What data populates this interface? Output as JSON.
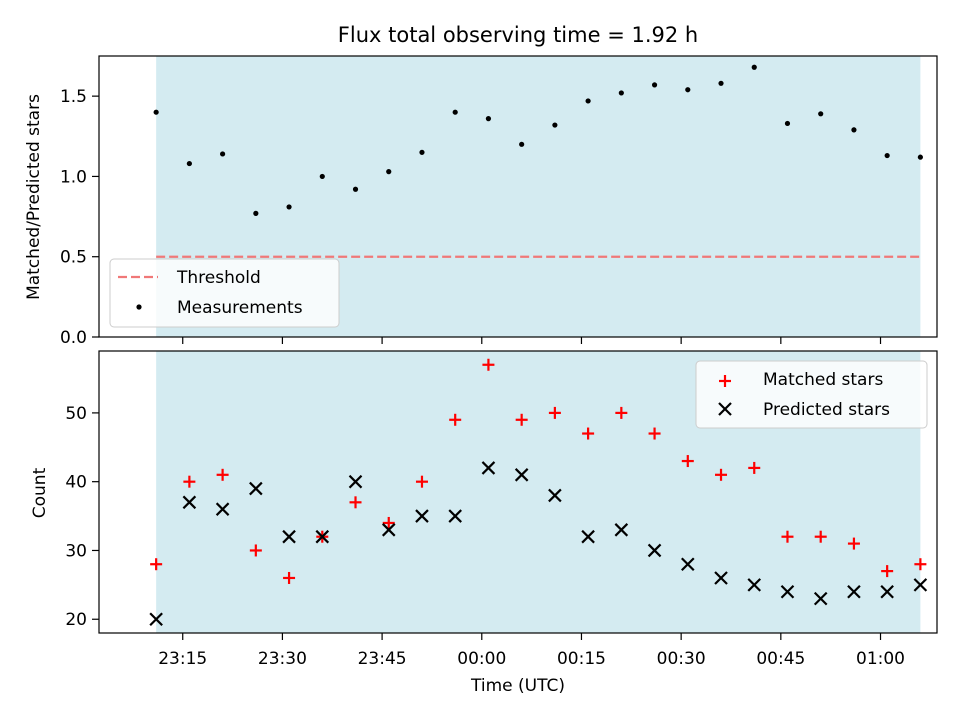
{
  "title": "Flux total observing time = 1.92 h",
  "colors": {
    "shade": "#d4ebf1",
    "threshold": "#f07878",
    "measurement": "#000000",
    "matched": "#ff0000",
    "predicted": "#000000"
  },
  "chart_data": [
    {
      "type": "scatter",
      "ylabel": "Matched/Predicted stars",
      "ylim": [
        0,
        1.75
      ],
      "yticks": [
        0,
        0.5,
        1.0,
        1.5
      ],
      "ytick_labels": [
        "0.0",
        "0.5",
        "1.0",
        "1.5"
      ],
      "legend_position": "lower-left",
      "threshold": {
        "name": "Threshold",
        "value": 0.5
      },
      "series": [
        {
          "name": "Measurements",
          "x": [
            "23:11",
            "23:16",
            "23:21",
            "23:26",
            "23:31",
            "23:36",
            "23:41",
            "23:46",
            "23:51",
            "23:56",
            "00:01",
            "00:06",
            "00:11",
            "00:16",
            "00:21",
            "00:26",
            "00:31",
            "00:36",
            "00:41",
            "00:46",
            "00:51",
            "00:56",
            "01:01",
            "01:06"
          ],
          "y": [
            1.4,
            1.08,
            1.14,
            0.77,
            0.81,
            1.0,
            0.92,
            1.03,
            1.15,
            1.4,
            1.36,
            1.2,
            1.32,
            1.47,
            1.52,
            1.57,
            1.54,
            1.58,
            1.68,
            1.33,
            1.39,
            1.29,
            1.13,
            1.12
          ]
        }
      ]
    },
    {
      "type": "scatter",
      "xlabel": "Time (UTC)",
      "ylabel": "Count",
      "ylim": [
        18,
        59
      ],
      "yticks": [
        20,
        30,
        40,
        50
      ],
      "xticks": [
        "23:15",
        "23:30",
        "23:45",
        "00:00",
        "00:15",
        "00:30",
        "00:45",
        "01:00"
      ],
      "legend_position": "upper-right",
      "series": [
        {
          "name": "Matched stars",
          "marker": "plus",
          "x": [
            "23:11",
            "23:16",
            "23:21",
            "23:26",
            "23:31",
            "23:36",
            "23:41",
            "23:46",
            "23:51",
            "23:56",
            "00:01",
            "00:06",
            "00:11",
            "00:16",
            "00:21",
            "00:26",
            "00:31",
            "00:36",
            "00:41",
            "00:46",
            "00:51",
            "00:56",
            "01:01",
            "01:06"
          ],
          "y": [
            28,
            40,
            41,
            30,
            26,
            32,
            37,
            34,
            40,
            49,
            57,
            49,
            50,
            47,
            50,
            47,
            43,
            41,
            42,
            32,
            32,
            31,
            27,
            28
          ]
        },
        {
          "name": "Predicted stars",
          "marker": "x",
          "x": [
            "23:11",
            "23:16",
            "23:21",
            "23:26",
            "23:31",
            "23:36",
            "23:41",
            "23:46",
            "23:51",
            "23:56",
            "00:01",
            "00:06",
            "00:11",
            "00:16",
            "00:21",
            "00:26",
            "00:31",
            "00:36",
            "00:41",
            "00:46",
            "00:51",
            "00:56",
            "01:01",
            "01:06"
          ],
          "y": [
            20,
            37,
            36,
            39,
            32,
            32,
            40,
            33,
            35,
            35,
            42,
            41,
            38,
            32,
            33,
            30,
            28,
            26,
            25,
            24,
            23,
            24,
            24,
            25
          ]
        }
      ]
    }
  ]
}
